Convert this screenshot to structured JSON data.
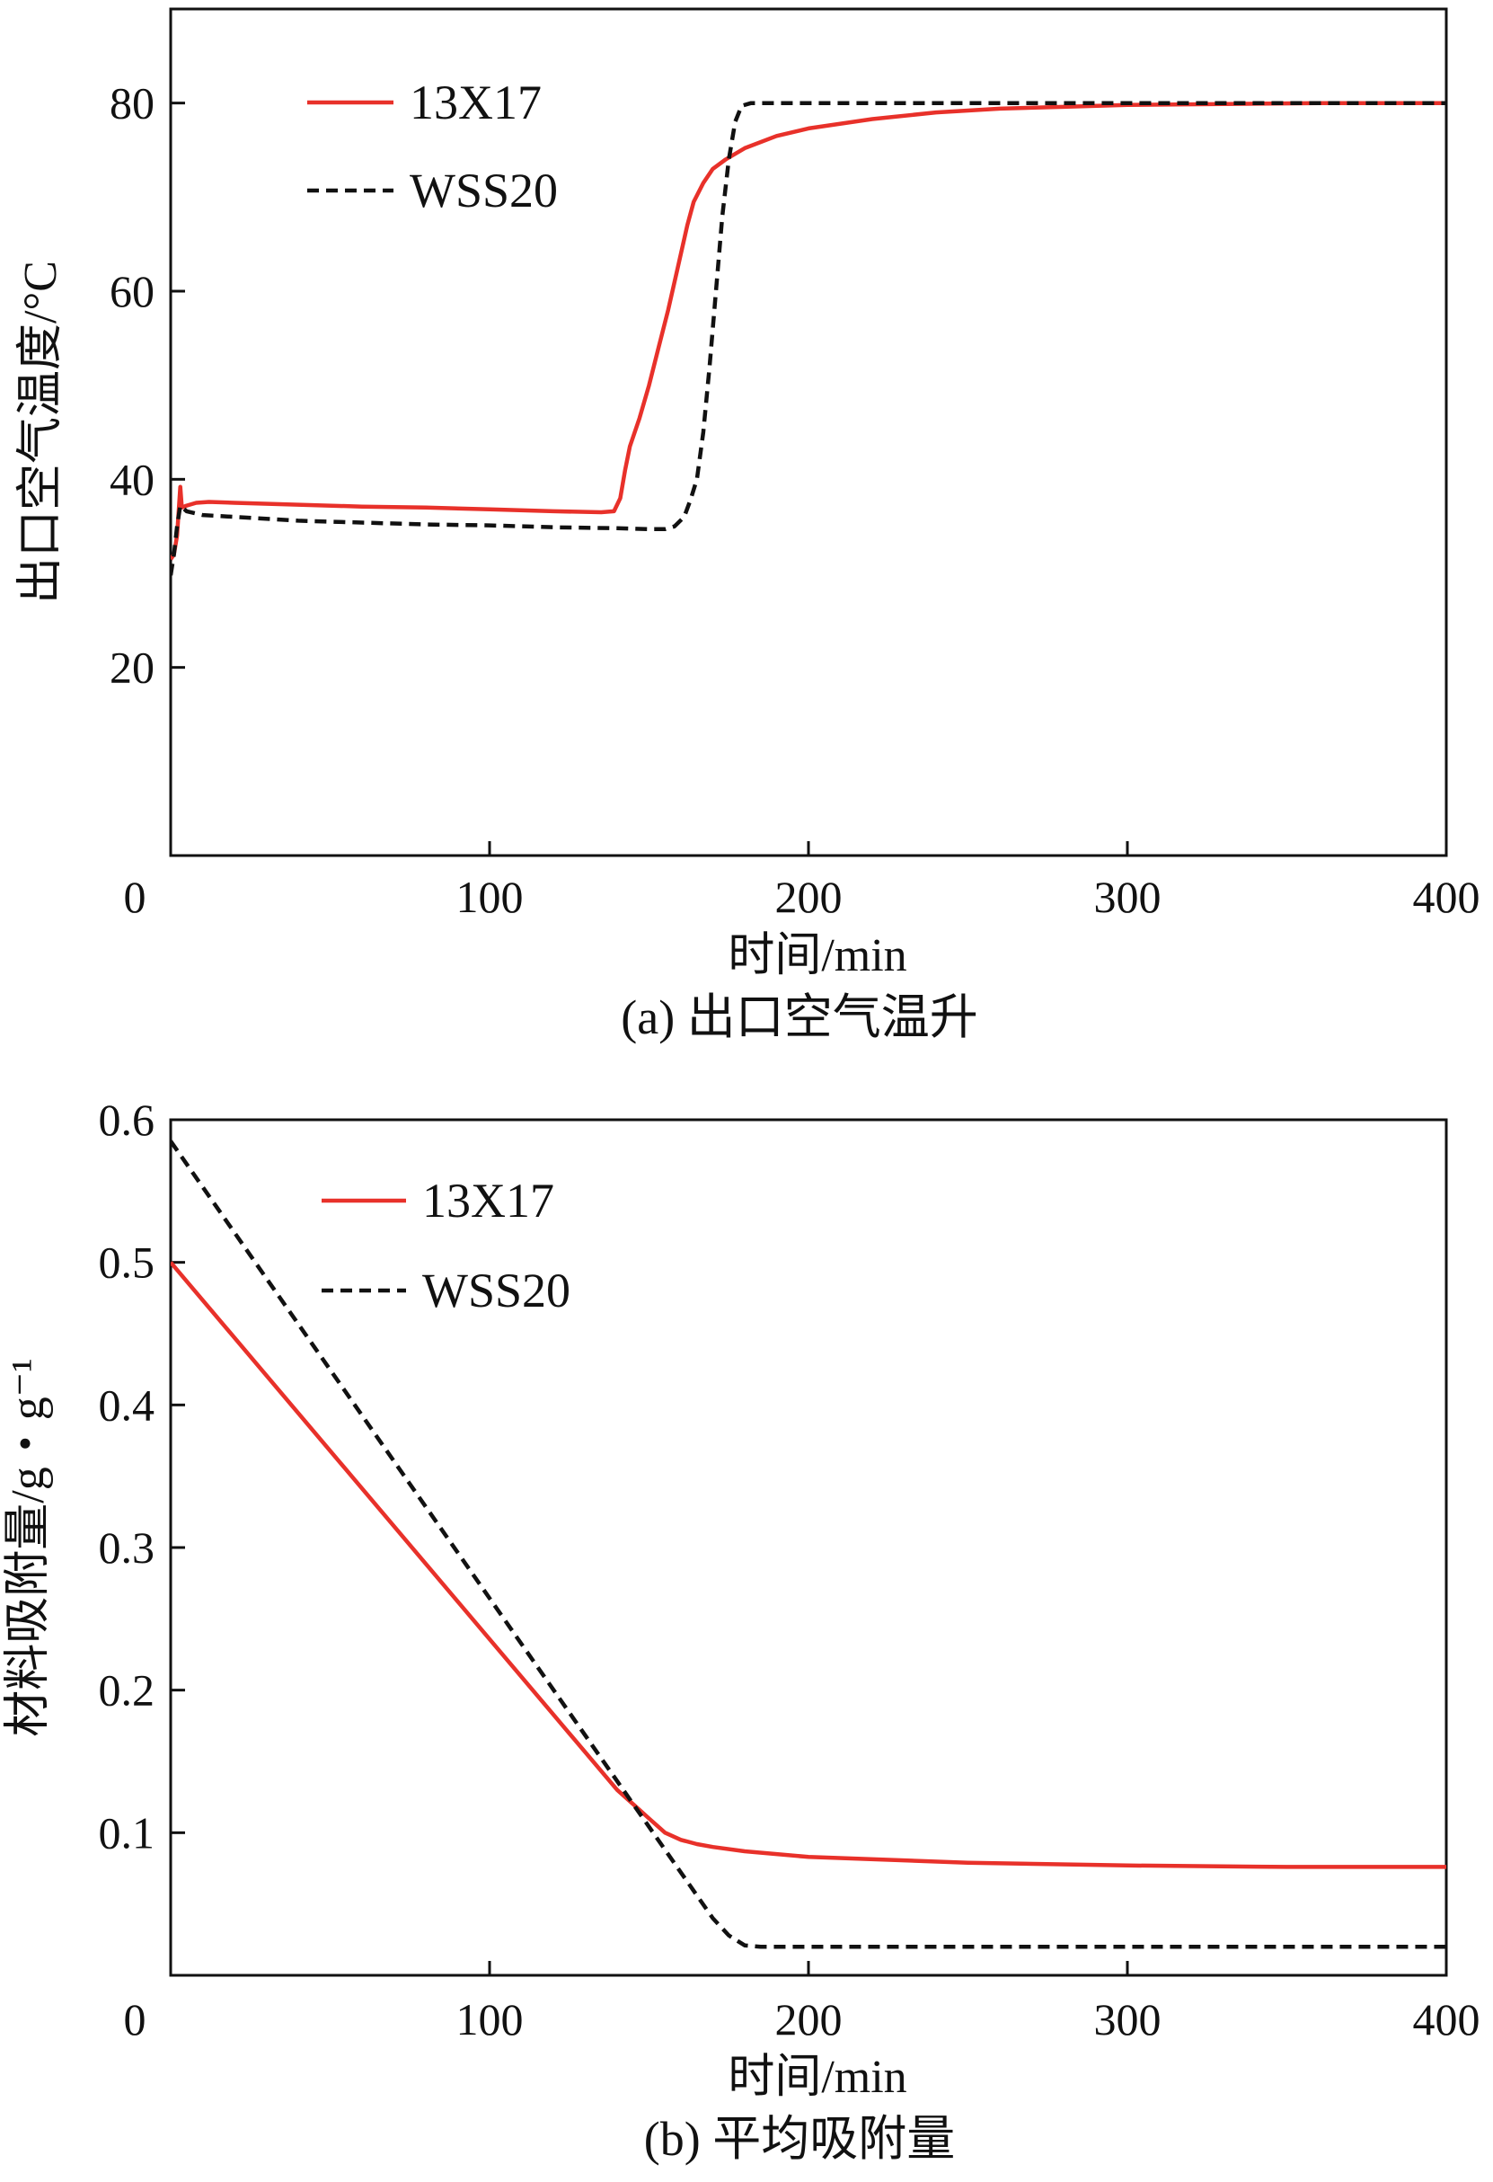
{
  "chart_data": [
    {
      "id": "a",
      "type": "line",
      "caption": "(a) 出口空气温升",
      "xlabel": "时间/min",
      "ylabel": "出口空气温度/°C",
      "xlim": [
        0,
        400
      ],
      "ylim": [
        0,
        90
      ],
      "xticks": [
        0,
        100,
        200,
        300,
        400
      ],
      "yticks": [
        20,
        40,
        60,
        80
      ],
      "grid": false,
      "legend_position": "top-left",
      "series": [
        {
          "name": "13X17",
          "color": "#e8312a",
          "dash": "solid",
          "points": [
            [
              0,
              31.5
            ],
            [
              1,
              32
            ],
            [
              2,
              34
            ],
            [
              3,
              39.2
            ],
            [
              3.5,
              37
            ],
            [
              5,
              37.2
            ],
            [
              8,
              37.5
            ],
            [
              12,
              37.6
            ],
            [
              20,
              37.5
            ],
            [
              40,
              37.3
            ],
            [
              60,
              37.1
            ],
            [
              80,
              37.0
            ],
            [
              100,
              36.8
            ],
            [
              120,
              36.6
            ],
            [
              135,
              36.5
            ],
            [
              139,
              36.6
            ],
            [
              141,
              38
            ],
            [
              142.5,
              41
            ],
            [
              144,
              43.5
            ],
            [
              147,
              46.5
            ],
            [
              150,
              50
            ],
            [
              153,
              54
            ],
            [
              156,
              58
            ],
            [
              159,
              62.5
            ],
            [
              162,
              67
            ],
            [
              164,
              69.5
            ],
            [
              167,
              71.5
            ],
            [
              170,
              73
            ],
            [
              174,
              74
            ],
            [
              180,
              75.2
            ],
            [
              190,
              76.5
            ],
            [
              200,
              77.3
            ],
            [
              220,
              78.3
            ],
            [
              240,
              79
            ],
            [
              260,
              79.4
            ],
            [
              280,
              79.6
            ],
            [
              300,
              79.8
            ],
            [
              330,
              79.9
            ],
            [
              360,
              80
            ],
            [
              400,
              80
            ]
          ]
        },
        {
          "name": "WSS20",
          "color": "#111111",
          "dash": "dashed",
          "points": [
            [
              0,
              29.8
            ],
            [
              1,
              32
            ],
            [
              2,
              35
            ],
            [
              3,
              37.2
            ],
            [
              5,
              36.6
            ],
            [
              10,
              36.2
            ],
            [
              20,
              36
            ],
            [
              40,
              35.6
            ],
            [
              60,
              35.4
            ],
            [
              80,
              35.2
            ],
            [
              100,
              35.1
            ],
            [
              120,
              34.9
            ],
            [
              140,
              34.8
            ],
            [
              150,
              34.7
            ],
            [
              155,
              34.7
            ],
            [
              158,
              35
            ],
            [
              161,
              36
            ],
            [
              163,
              37.8
            ],
            [
              165,
              40
            ],
            [
              167,
              45
            ],
            [
              169,
              52
            ],
            [
              171,
              60
            ],
            [
              173,
              68
            ],
            [
              175,
              74
            ],
            [
              177,
              78
            ],
            [
              179,
              79.7
            ],
            [
              182,
              80
            ],
            [
              200,
              80
            ],
            [
              300,
              80
            ],
            [
              400,
              80
            ]
          ]
        }
      ]
    },
    {
      "id": "b",
      "type": "line",
      "caption": "(b) 平均吸附量",
      "xlabel": "时间/min",
      "ylabel": "材料吸附量/g・g⁻¹",
      "xlim": [
        0,
        400
      ],
      "ylim": [
        0,
        0.6
      ],
      "xticks": [
        0,
        100,
        200,
        300,
        400
      ],
      "yticks": [
        0.1,
        0.2,
        0.3,
        0.4,
        0.5,
        0.6
      ],
      "grid": false,
      "legend_position": "top-left",
      "series": [
        {
          "name": "13X17",
          "color": "#e8312a",
          "dash": "solid",
          "points": [
            [
              0,
              0.5
            ],
            [
              140,
              0.13
            ],
            [
              145,
              0.12
            ],
            [
              150,
              0.11
            ],
            [
              155,
              0.1
            ],
            [
              160,
              0.095
            ],
            [
              165,
              0.092
            ],
            [
              170,
              0.09
            ],
            [
              180,
              0.087
            ],
            [
              190,
              0.085
            ],
            [
              200,
              0.083
            ],
            [
              250,
              0.079
            ],
            [
              300,
              0.077
            ],
            [
              350,
              0.076
            ],
            [
              400,
              0.076
            ]
          ]
        },
        {
          "name": "WSS20",
          "color": "#111111",
          "dash": "dashed",
          "points": [
            [
              0,
              0.585
            ],
            [
              170,
              0.04
            ],
            [
              175,
              0.028
            ],
            [
              180,
              0.021
            ],
            [
              185,
              0.02
            ],
            [
              200,
              0.02
            ],
            [
              300,
              0.02
            ],
            [
              400,
              0.02
            ]
          ]
        }
      ]
    }
  ]
}
